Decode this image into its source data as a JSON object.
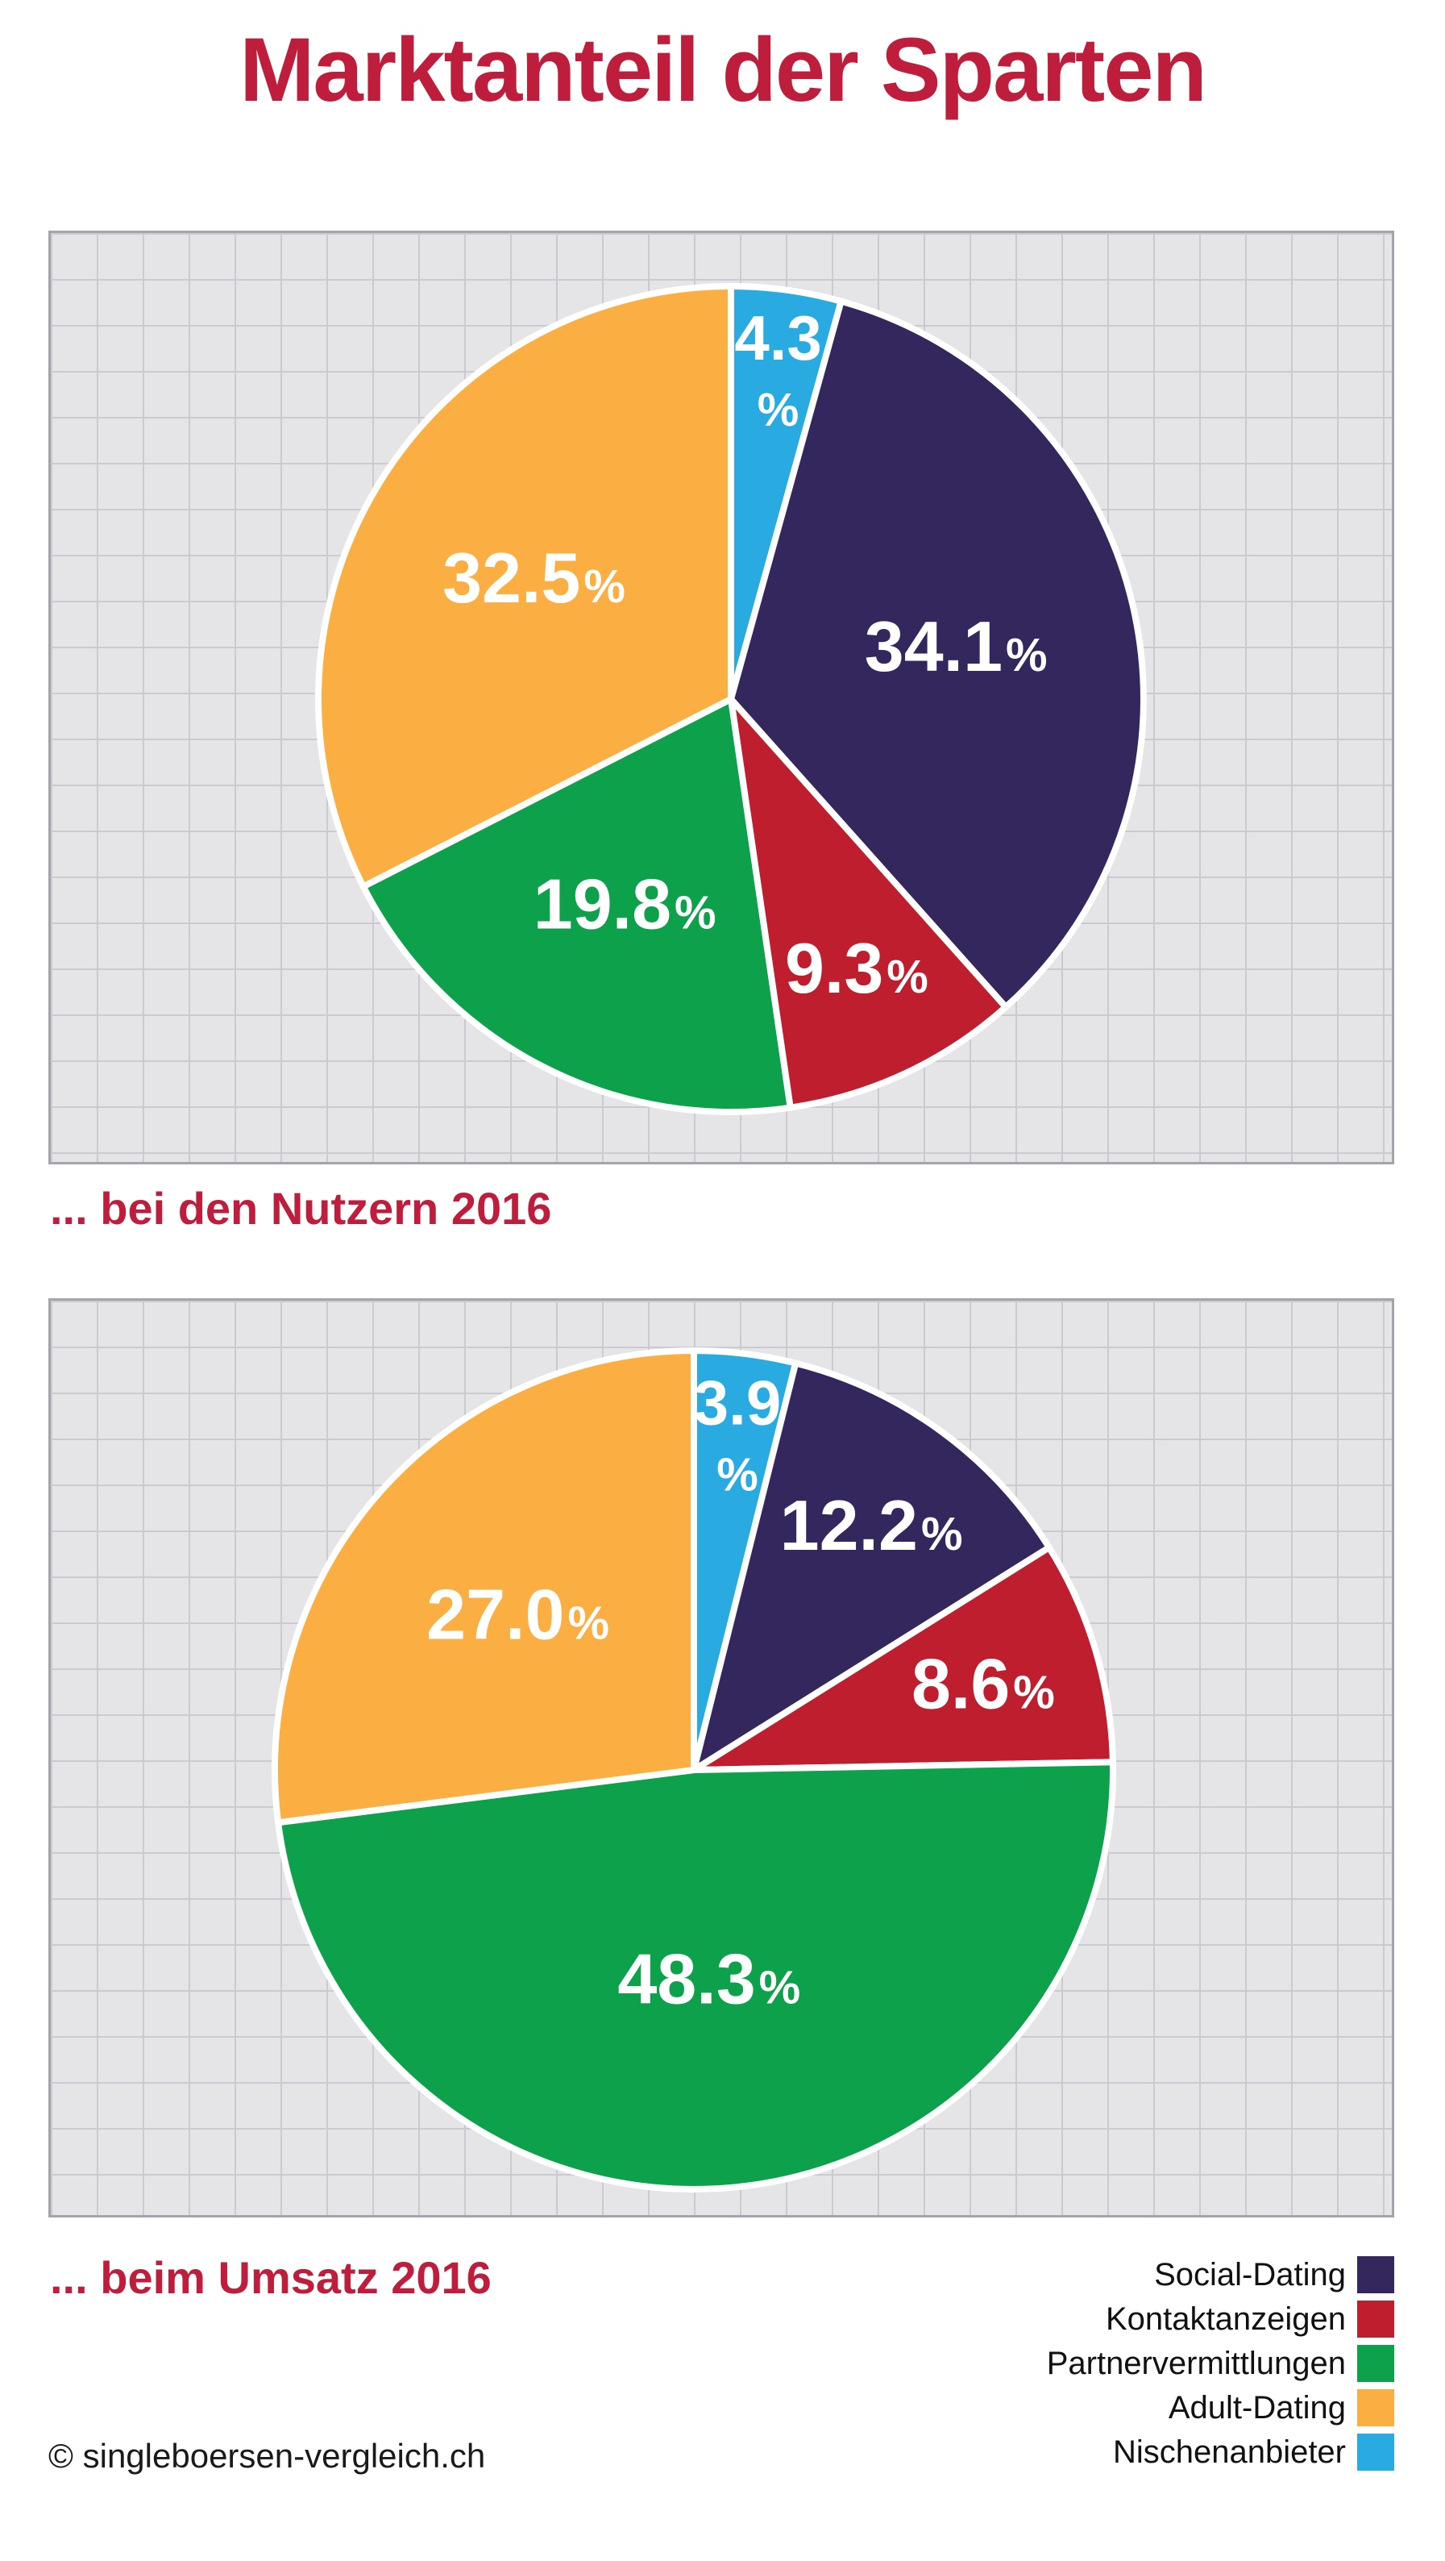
{
  "page": {
    "title": "Marktanteil der Sparten",
    "copyright": "© singleboersen-vergleich.ch"
  },
  "colors": {
    "accent_red": "#be1e3c",
    "social_dating": "#33275e",
    "kontaktanzeigen": "#be1e2d",
    "partnervermittlungen": "#0da14c",
    "adult_dating": "#fbae42",
    "nischenanbieter": "#29abe2",
    "panel_background": "#e5e4e7",
    "grid_line": "#cbcad0"
  },
  "chart_data": [
    {
      "type": "pie",
      "title": "... bei den Nutzern 2016",
      "unit": "%",
      "start_angle_deg": 0,
      "direction": "clockwise",
      "slices": [
        {
          "label": "Nischenanbieter",
          "value": 4.3,
          "color": "#29abe2"
        },
        {
          "label": "Social-Dating",
          "value": 34.1,
          "color": "#33275e"
        },
        {
          "label": "Kontaktanzeigen",
          "value": 9.3,
          "color": "#be1e2d"
        },
        {
          "label": "Partnervermittlungen",
          "value": 19.8,
          "color": "#0da14c"
        },
        {
          "label": "Adult-Dating",
          "value": 32.5,
          "color": "#fbae42"
        }
      ]
    },
    {
      "type": "pie",
      "title": "... beim Umsatz 2016",
      "unit": "%",
      "start_angle_deg": 0,
      "direction": "clockwise",
      "slices": [
        {
          "label": "Nischenanbieter",
          "value": 3.9,
          "color": "#29abe2"
        },
        {
          "label": "Social-Dating",
          "value": 12.2,
          "color": "#33275e"
        },
        {
          "label": "Kontaktanzeigen",
          "value": 8.6,
          "color": "#be1e2d"
        },
        {
          "label": "Partnervermittlungen",
          "value": 48.3,
          "color": "#0da14c"
        },
        {
          "label": "Adult-Dating",
          "value": 27.0,
          "color": "#fbae42"
        }
      ]
    }
  ],
  "legend": {
    "position": "bottom-right",
    "items": [
      {
        "label": "Social-Dating",
        "color": "#33275e"
      },
      {
        "label": "Kontaktanzeigen",
        "color": "#be1e2d"
      },
      {
        "label": "Partnervermittlungen",
        "color": "#0da14c"
      },
      {
        "label": "Adult-Dating",
        "color": "#fbae42"
      },
      {
        "label": "Nischenanbieter",
        "color": "#29abe2"
      }
    ]
  }
}
